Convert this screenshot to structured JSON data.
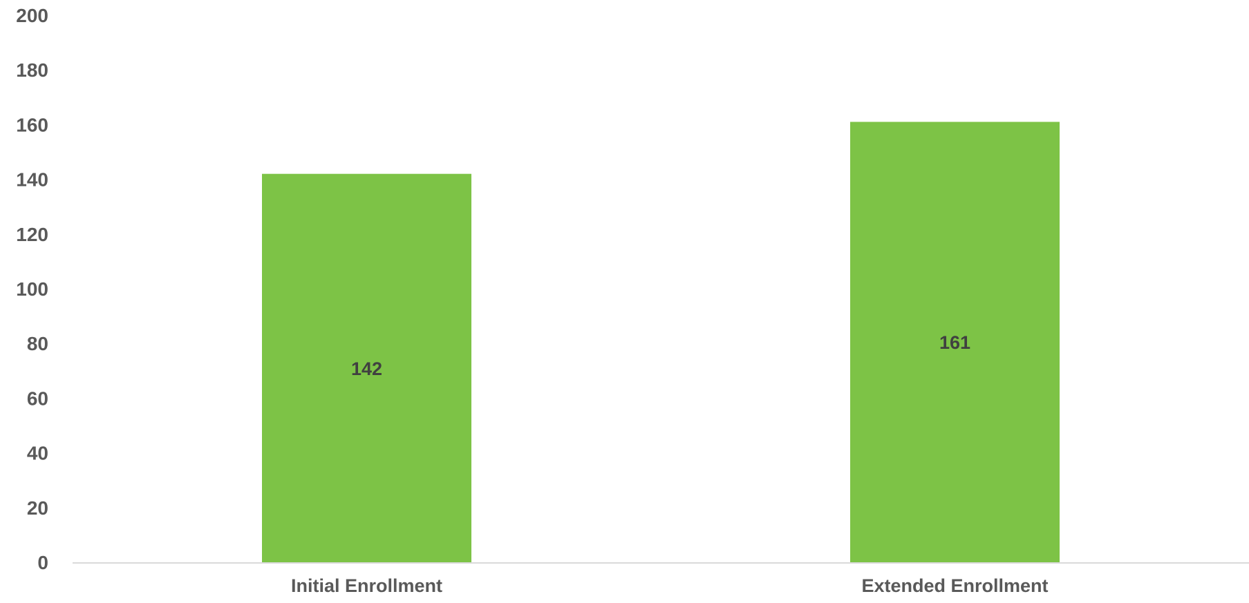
{
  "chart_data": {
    "type": "bar",
    "title": "",
    "xlabel": "",
    "ylabel": "",
    "categories": [
      "Initial Enrollment",
      "Extended Enrollment"
    ],
    "values": [
      142,
      161
    ],
    "data_labels": [
      "142",
      "161"
    ],
    "ylim": [
      0,
      200
    ],
    "yticks": [
      0,
      20,
      40,
      60,
      80,
      100,
      120,
      140,
      160,
      180,
      200
    ],
    "ytick_labels": [
      "0",
      "20",
      "40",
      "60",
      "80",
      "100",
      "120",
      "140",
      "160",
      "180",
      "200"
    ],
    "grid": false,
    "legend": "none",
    "data_label_position": "center",
    "colors": {
      "bar": "#7DC346",
      "axis": "#D9D9D9",
      "tick_text": "#595959",
      "data_label_text": "#404040"
    }
  }
}
